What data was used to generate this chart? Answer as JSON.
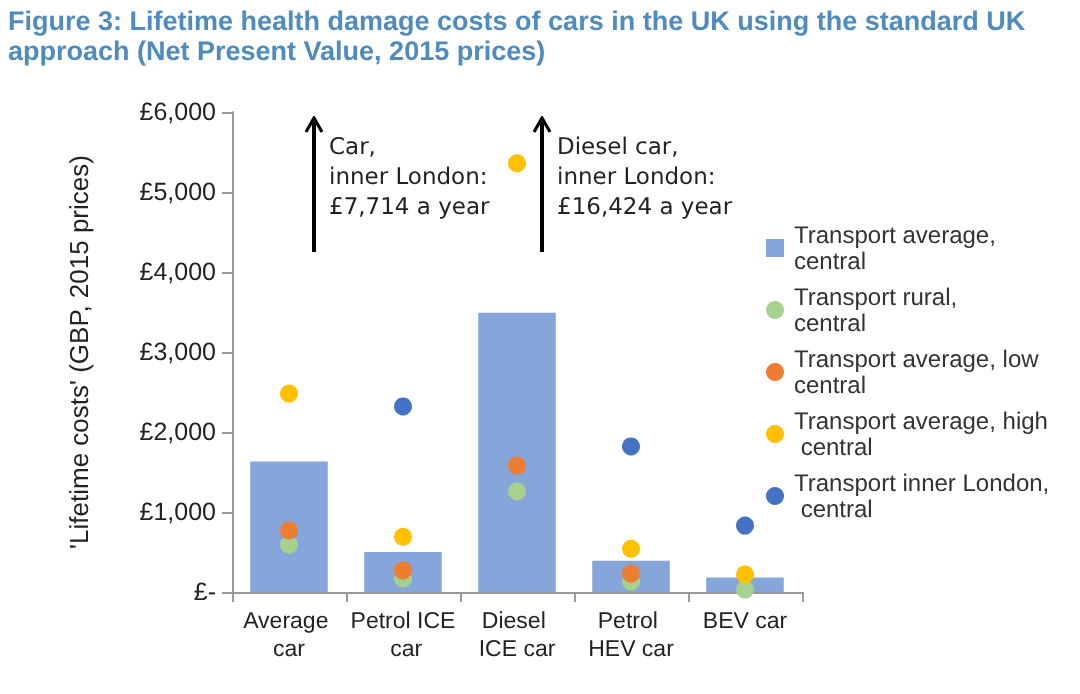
{
  "chart_data": {
    "type": "scatter",
    "title": "Figure 3: Lifetime health damage costs of cars in the UK using the standard UK approach (Net Present Value, 2015 prices)",
    "ylabel": "'Lifetime costs' (GBP, 2015 prices)",
    "categories": [
      "Average car",
      "Petrol ICE car",
      "Diesel ICE car",
      "Petrol HEV car",
      "BEV car"
    ],
    "series": [
      {
        "name": "Transport average, central",
        "type": "bar",
        "color": "#86a5da",
        "values": [
          1630,
          500,
          3490,
          390,
          180
        ]
      },
      {
        "name": "Transport rural, central",
        "color": "#a9d18e",
        "values": [
          590,
          170,
          1260,
          130,
          30
        ]
      },
      {
        "name": "Transport average, low central",
        "color": "#ed7d31",
        "values": [
          770,
          270,
          1580,
          230,
          null
        ]
      },
      {
        "name": "Transport average, high central",
        "color": "#ffc000",
        "values": [
          2480,
          690,
          5360,
          540,
          220
        ]
      },
      {
        "name": "Transport inner London, central",
        "color": "#4472c4",
        "values": [
          null,
          2320,
          null,
          1820,
          830
        ]
      }
    ],
    "annotations": [
      "Car,\ninner London:\n£7,714 a year",
      "Diesel car,\ninner London:\n£16,424 a year"
    ],
    "ylim": [
      0,
      6000
    ],
    "yticks": [
      {
        "value": 0,
        "label": "£-"
      },
      {
        "value": 1000,
        "label": "£1,000"
      },
      {
        "value": 2000,
        "label": "£2,000"
      },
      {
        "value": 3000,
        "label": "£3,000"
      },
      {
        "value": 4000,
        "label": "£4,000"
      },
      {
        "value": 5000,
        "label": "£5,000"
      },
      {
        "value": 6000,
        "label": "£6,000"
      }
    ],
    "grid": false,
    "legend": "right",
    "marker": "circle"
  }
}
